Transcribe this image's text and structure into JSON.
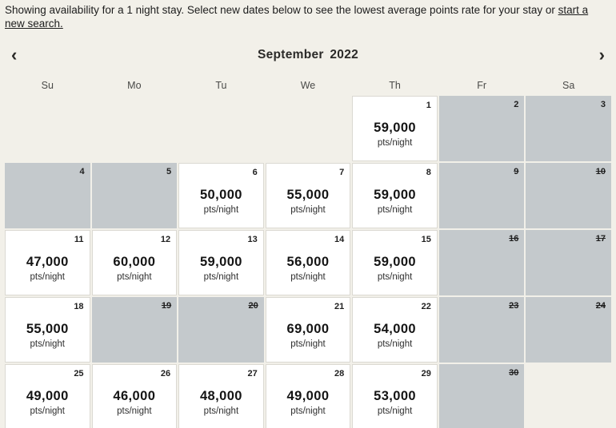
{
  "banner": {
    "text": "Showing availability for a 1 night stay. Select new dates below to see the lowest average points rate for your stay or",
    "link_text": "start a new search."
  },
  "calendar": {
    "title": "September 2022",
    "prev_icon": "‹",
    "next_icon": "›",
    "weekdays": [
      "Su",
      "Mo",
      "Tu",
      "We",
      "Th",
      "Fr",
      "Sa"
    ],
    "rate_unit": "pts/night",
    "colors": {
      "page_background": "#f2f0e9",
      "available_cell": "#ffffff",
      "unavailable_cell": "#c4c9cc"
    },
    "weeks": [
      [
        null,
        null,
        null,
        null,
        {
          "day": "1",
          "available": true,
          "rate": "59,000"
        },
        {
          "day": "2",
          "available": false,
          "struck": false
        },
        {
          "day": "3",
          "available": false,
          "struck": false
        }
      ],
      [
        {
          "day": "4",
          "available": false,
          "struck": false
        },
        {
          "day": "5",
          "available": false,
          "struck": false
        },
        {
          "day": "6",
          "available": true,
          "rate": "50,000"
        },
        {
          "day": "7",
          "available": true,
          "rate": "55,000"
        },
        {
          "day": "8",
          "available": true,
          "rate": "59,000"
        },
        {
          "day": "9",
          "available": false,
          "struck": true
        },
        {
          "day": "10",
          "available": false,
          "struck": true
        }
      ],
      [
        {
          "day": "11",
          "available": true,
          "rate": "47,000"
        },
        {
          "day": "12",
          "available": true,
          "rate": "60,000"
        },
        {
          "day": "13",
          "available": true,
          "rate": "59,000"
        },
        {
          "day": "14",
          "available": true,
          "rate": "56,000"
        },
        {
          "day": "15",
          "available": true,
          "rate": "59,000"
        },
        {
          "day": "16",
          "available": false,
          "struck": true
        },
        {
          "day": "17",
          "available": false,
          "struck": true
        }
      ],
      [
        {
          "day": "18",
          "available": true,
          "rate": "55,000"
        },
        {
          "day": "19",
          "available": false,
          "struck": true
        },
        {
          "day": "20",
          "available": false,
          "struck": true
        },
        {
          "day": "21",
          "available": true,
          "rate": "69,000"
        },
        {
          "day": "22",
          "available": true,
          "rate": "54,000"
        },
        {
          "day": "23",
          "available": false,
          "struck": true
        },
        {
          "day": "24",
          "available": false,
          "struck": true
        }
      ],
      [
        {
          "day": "25",
          "available": true,
          "rate": "49,000"
        },
        {
          "day": "26",
          "available": true,
          "rate": "46,000"
        },
        {
          "day": "27",
          "available": true,
          "rate": "48,000"
        },
        {
          "day": "28",
          "available": true,
          "rate": "49,000"
        },
        {
          "day": "29",
          "available": true,
          "rate": "53,000"
        },
        {
          "day": "30",
          "available": false,
          "struck": true
        },
        null
      ]
    ]
  }
}
